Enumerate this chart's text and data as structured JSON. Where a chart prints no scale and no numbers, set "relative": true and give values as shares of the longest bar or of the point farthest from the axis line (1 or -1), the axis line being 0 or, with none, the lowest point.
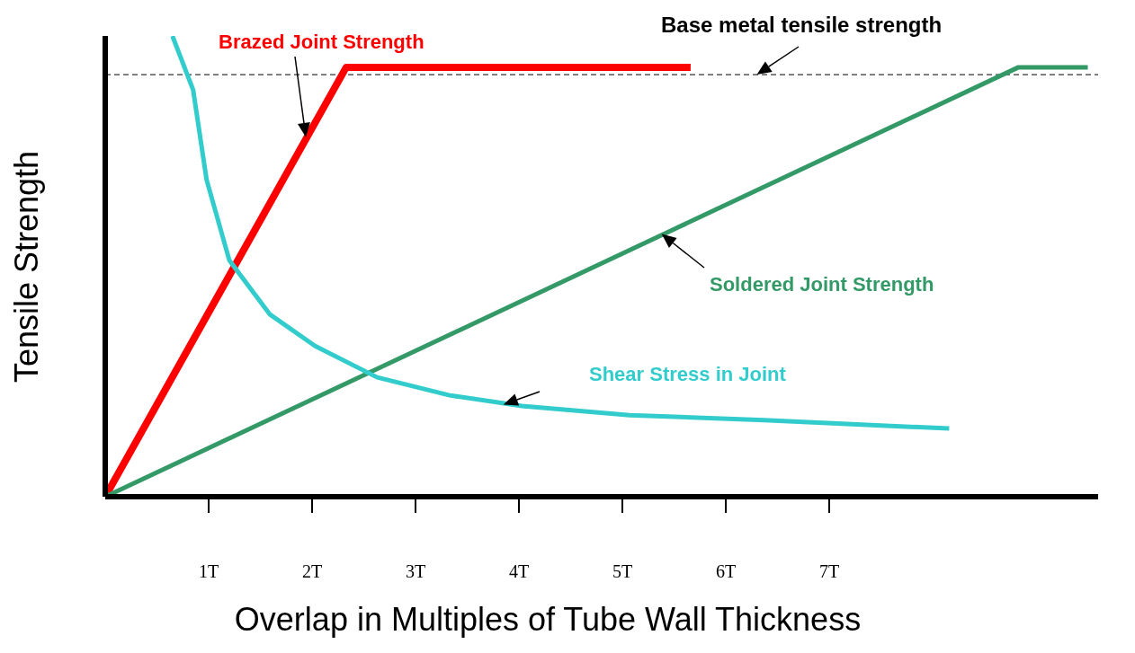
{
  "chart_data": {
    "type": "line",
    "relative": true,
    "xlabel": "Overlap in Multiples of Tube Wall Thickness",
    "ylabel": "Tensile Strength",
    "xlim": [
      0,
      9.6
    ],
    "xticks": [
      {
        "value": 1,
        "label": "1T"
      },
      {
        "value": 2,
        "label": "2T"
      },
      {
        "value": 3,
        "label": "3T"
      },
      {
        "value": 4,
        "label": "4T"
      },
      {
        "value": 5,
        "label": "5T"
      },
      {
        "value": 6,
        "label": "6T"
      },
      {
        "value": 7,
        "label": "7T"
      }
    ],
    "marker": "none",
    "line_style": "solid",
    "series": [
      {
        "name": "Brazed Joint Strength",
        "color": "#ff0000",
        "x": [
          0,
          2.33,
          5.66
        ],
        "values": [
          0,
          0.932,
          0.932
        ]
      },
      {
        "name": "Soldered Joint Strength",
        "color": "#339966",
        "x": [
          0,
          8.83,
          9.5
        ],
        "values": [
          0,
          0.932,
          0.932
        ]
      },
      {
        "name": "Shear Stress in Joint",
        "color": "#33cccc",
        "x": [
          0.65,
          0.85,
          0.98,
          1.2,
          1.59,
          2.03,
          2.63,
          3.33,
          4.03,
          5.07,
          6.37,
          8.16
        ],
        "values": [
          1,
          0.883,
          0.688,
          0.513,
          0.396,
          0.327,
          0.259,
          0.22,
          0.197,
          0.177,
          0.166,
          0.148
        ]
      }
    ],
    "ref_lines": [
      {
        "axis": "y",
        "value": 0.916,
        "label": "Base metal tensile strength",
        "color": "#000000",
        "line_style": "dashed"
      }
    ]
  }
}
